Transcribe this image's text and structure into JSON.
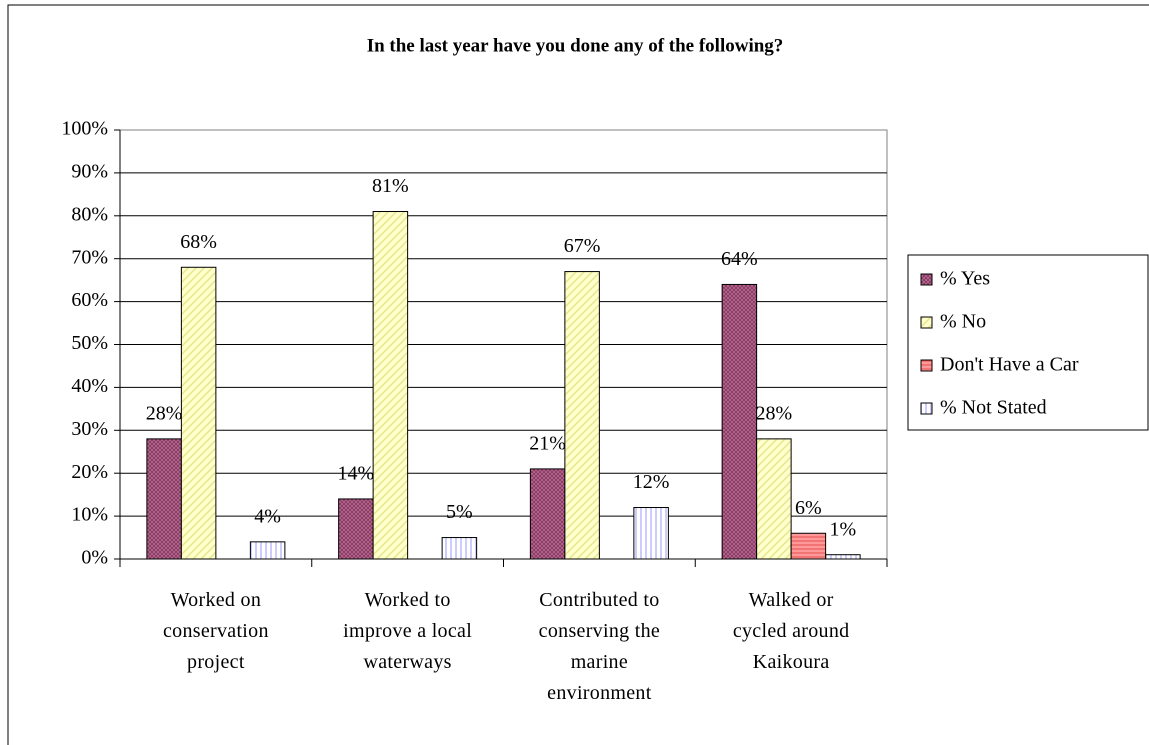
{
  "chart_data": {
    "type": "bar",
    "title": "In the last year have you done any of the following?",
    "categories": [
      "Worked on\nconservation\nproject",
      "Worked to\nimprove a local\nwaterways",
      "Contributed to\nconserving the\nmarine\nenvironment",
      "Walked or\ncycled around\nKaikoura"
    ],
    "series": [
      {
        "name": "% Yes",
        "color": "#b8668f",
        "values": [
          28,
          14,
          21,
          64
        ],
        "value_labels": [
          "28%",
          "14%",
          "21%",
          "64%"
        ]
      },
      {
        "name": "% No",
        "color": "#ffffcc",
        "values": [
          68,
          81,
          67,
          28
        ],
        "value_labels": [
          "68%",
          "81%",
          "67%",
          "28%"
        ]
      },
      {
        "name": "Don't Have a Car",
        "color": "#ff9999",
        "values": [
          null,
          null,
          null,
          6
        ],
        "value_labels": [
          null,
          null,
          null,
          "6%"
        ]
      },
      {
        "name": "% Not Stated",
        "color": "#ccccff",
        "values": [
          4,
          5,
          12,
          1
        ],
        "value_labels": [
          "4%",
          "5%",
          "12%",
          "1%"
        ]
      }
    ],
    "ylim": [
      0,
      100
    ],
    "yticks": [
      {
        "value": 0,
        "label": "0%"
      },
      {
        "value": 10,
        "label": "10%"
      },
      {
        "value": 20,
        "label": "20%"
      },
      {
        "value": 30,
        "label": "30%"
      },
      {
        "value": 40,
        "label": "40%"
      },
      {
        "value": 50,
        "label": "50%"
      },
      {
        "value": 60,
        "label": "60%"
      },
      {
        "value": 70,
        "label": "70%"
      },
      {
        "value": 80,
        "label": "80%"
      },
      {
        "value": 90,
        "label": "90%"
      },
      {
        "value": 100,
        "label": "100%"
      }
    ],
    "grid": true,
    "legend": "right"
  }
}
